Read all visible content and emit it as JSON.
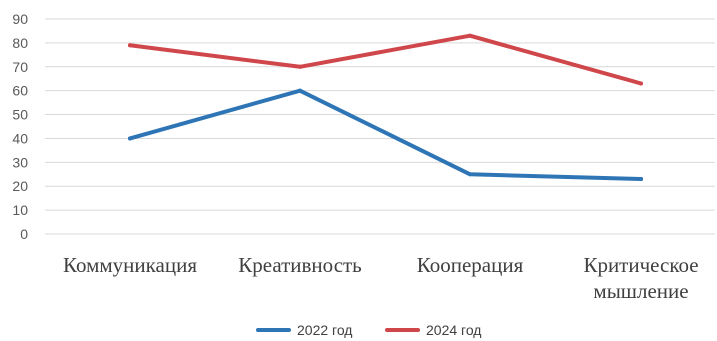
{
  "chart_data": {
    "type": "line",
    "title": "",
    "xlabel": "",
    "ylabel": "",
    "categories": [
      [
        "Коммуникация"
      ],
      [
        "Креативность"
      ],
      [
        "Кооперация"
      ],
      [
        "Критическое",
        "мышление"
      ]
    ],
    "ylim": [
      0,
      90
    ],
    "yticks": [
      0,
      10,
      20,
      30,
      40,
      50,
      60,
      70,
      80,
      90
    ],
    "grid": true,
    "legend_position": "bottom",
    "series": [
      {
        "name": "2022 год",
        "color": "#2e75b6",
        "values": [
          40,
          60,
          25,
          23
        ]
      },
      {
        "name": "2024 год",
        "color": "#d0474b",
        "values": [
          79,
          70,
          83,
          63
        ]
      }
    ]
  }
}
